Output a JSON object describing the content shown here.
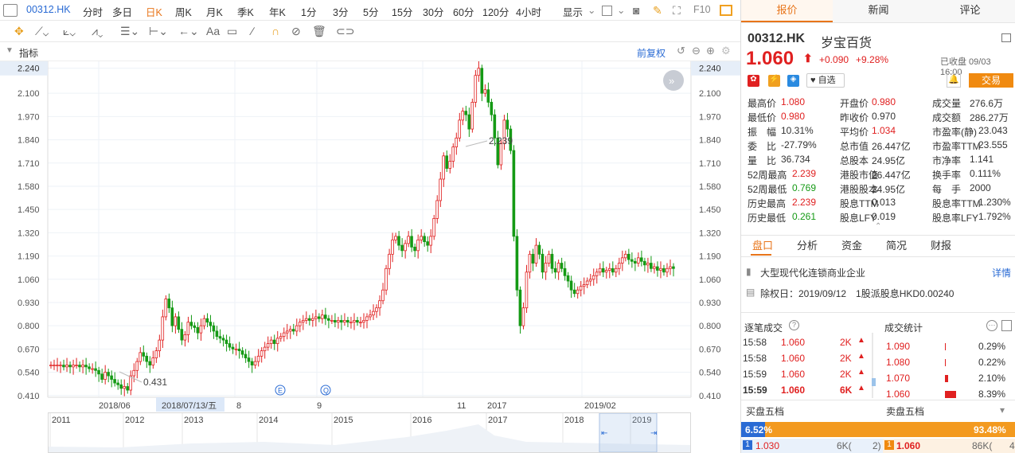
{
  "toolbar": {
    "code": "00312.HK",
    "periods": [
      "分时",
      "多日",
      "日K",
      "周K",
      "月K",
      "季K",
      "年K",
      "1分",
      "3分",
      "5分",
      "15分",
      "30分",
      "60分",
      "120分",
      "4小时"
    ],
    "active_period": "日K",
    "display": "显示",
    "f10": "F10"
  },
  "indicator": {
    "label": "指标",
    "adjust": "前复权"
  },
  "chart_data": {
    "type": "candlestick",
    "y_ticks": [
      "2.240",
      "2.100",
      "1.970",
      "1.840",
      "1.710",
      "1.580",
      "1.450",
      "1.320",
      "1.190",
      "1.060",
      "0.930",
      "0.800",
      "0.670",
      "0.540",
      "0.410"
    ],
    "ylim": [
      0.4,
      2.27
    ],
    "x_labels": [
      "2018/06",
      "2018/07/13/五",
      "8",
      "9",
      "11",
      "2017",
      "2019/02"
    ],
    "annot_high": "2.239",
    "annot_low": "0.431",
    "current_price_tag": "2.240",
    "markers": [
      "E",
      "Q"
    ],
    "closes": [
      0.58,
      0.58,
      0.58,
      0.58,
      0.57,
      0.58,
      0.57,
      0.58,
      0.58,
      0.57,
      0.58,
      0.57,
      0.56,
      0.56,
      0.55,
      0.53,
      0.5,
      0.54,
      0.52,
      0.5,
      0.48,
      0.47,
      0.45,
      0.46,
      0.44,
      0.52,
      0.55,
      0.6,
      0.65,
      0.63,
      0.6,
      0.58,
      0.62,
      0.66,
      0.72,
      0.85,
      0.95,
      0.9,
      0.8,
      0.85,
      0.78,
      0.72,
      0.75,
      0.82,
      0.8,
      0.79,
      0.76,
      0.8,
      0.84,
      0.82,
      0.8,
      0.77,
      0.74,
      0.73,
      0.72,
      0.7,
      0.68,
      0.67,
      0.67,
      0.66,
      0.64,
      0.62,
      0.6,
      0.58,
      0.6,
      0.63,
      0.66,
      0.68,
      0.7,
      0.72,
      0.7,
      0.73,
      0.74,
      0.76,
      0.77,
      0.78,
      0.77,
      0.8,
      0.82,
      0.83,
      0.84,
      0.83,
      0.84,
      0.85,
      0.84,
      0.86,
      0.84,
      0.83,
      0.83,
      0.82,
      0.83,
      0.82,
      0.83,
      0.82,
      0.82,
      0.83,
      0.82,
      0.82,
      0.83,
      0.85,
      0.86,
      0.88,
      0.9,
      0.94,
      1.0,
      1.12,
      1.2,
      1.28,
      1.3,
      1.25,
      1.22,
      1.26,
      1.3,
      1.24,
      1.22,
      1.28,
      1.3,
      1.27,
      1.25,
      1.3,
      1.4,
      1.5,
      1.62,
      1.75,
      1.68,
      1.72,
      1.8,
      1.85,
      1.95,
      2.0,
      1.98,
      1.9,
      2.05,
      2.2,
      2.24,
      2.1,
      2.12,
      2.05,
      1.98,
      1.85,
      1.7,
      1.82,
      1.95,
      1.9,
      1.78,
      1.3,
      1.0,
      0.8,
      0.9,
      1.1,
      1.2,
      1.15,
      1.25,
      1.2,
      1.1,
      1.15,
      1.2,
      1.12,
      1.1,
      1.15,
      1.12,
      1.08,
      1.05,
      1.0,
      0.98,
      1.0,
      1.02,
      1.03,
      1.05,
      1.06,
      1.08,
      1.1,
      1.12,
      1.1,
      1.11,
      1.12,
      1.1,
      1.12,
      1.15,
      1.18,
      1.2,
      1.17,
      1.16,
      1.15,
      1.18,
      1.16,
      1.14,
      1.15,
      1.12,
      1.13,
      1.11,
      1.12,
      1.1,
      1.12,
      1.13,
      1.12
    ]
  },
  "navigator": {
    "years": [
      "2011",
      "2012",
      "2013",
      "2014",
      "2015",
      "2016",
      "2017",
      "2018",
      "2019"
    ]
  },
  "panel": {
    "tabs": [
      "报价",
      "新闻",
      "评论"
    ],
    "code": "00312.HK",
    "name": "岁宝百货",
    "price": "1.060",
    "change": "+0.090",
    "pct": "+9.28%",
    "status": "已收盘 09/03 16:00",
    "watch": "自选",
    "trade": "交易",
    "stats": [
      [
        [
          "最高价",
          "1.080",
          "red"
        ],
        [
          "开盘价",
          "0.980",
          "red"
        ],
        [
          "成交量",
          "276.6万",
          ""
        ]
      ],
      [
        [
          "最低价",
          "0.980",
          "red"
        ],
        [
          "昨收价",
          "0.970",
          ""
        ],
        [
          "成交额",
          "286.27万",
          ""
        ]
      ],
      [
        [
          "振　幅",
          "10.31%",
          ""
        ],
        [
          "平均价",
          "1.034",
          "red"
        ],
        [
          "市盈率(静)",
          "23.043",
          ""
        ]
      ],
      [
        [
          "委　比",
          "-27.79%",
          ""
        ],
        [
          "总市值",
          "26.447亿",
          ""
        ],
        [
          "市盈率TTM",
          "23.555",
          ""
        ]
      ],
      [
        [
          "量　比",
          "36.734",
          ""
        ],
        [
          "总股本",
          "24.95亿",
          ""
        ],
        [
          "市净率",
          "1.141",
          ""
        ]
      ],
      [
        [
          "52周最高",
          "2.239",
          "red"
        ],
        [
          "港股市值",
          "26.447亿",
          ""
        ],
        [
          "换手率",
          "0.111%",
          ""
        ]
      ],
      [
        [
          "52周最低",
          "0.769",
          "green"
        ],
        [
          "港股股本",
          "24.95亿",
          ""
        ],
        [
          "每　手",
          "2000",
          ""
        ]
      ],
      [
        [
          "历史最高",
          "2.239",
          "red"
        ],
        [
          "股息TTM",
          "0.013",
          ""
        ],
        [
          "股息率TTM",
          "1.230%",
          ""
        ]
      ],
      [
        [
          "历史最低",
          "0.261",
          "green"
        ],
        [
          "股息LFY",
          "0.019",
          ""
        ],
        [
          "股息率LFY",
          "1.792%",
          ""
        ]
      ]
    ],
    "subtabs": [
      "盘口",
      "分析",
      "资金",
      "简况",
      "财报"
    ],
    "industry": "大型现代化连锁商业企业",
    "detail": "详情",
    "dividend": "除权日：2019/09/12　1股派股息HKD0.00240",
    "ticks_title": "逐笔成交",
    "stats_title": "成交统计",
    "ticks": [
      [
        "15:58",
        "1.060",
        "2K"
      ],
      [
        "15:58",
        "1.060",
        "2K"
      ],
      [
        "15:59",
        "1.060",
        "2K"
      ],
      [
        "15:59",
        "1.060",
        "6K"
      ]
    ],
    "volstats": [
      [
        "1.090",
        "0.29%"
      ],
      [
        "1.080",
        "0.22%"
      ],
      [
        "1.070",
        "2.10%"
      ],
      [
        "1.060",
        "8.39%"
      ]
    ],
    "buy_title": "买盘五档",
    "sell_title": "卖盘五档",
    "buy_pct": "6.52%",
    "sell_pct": "93.48%",
    "buy1": [
      "1",
      "1.030",
      "6K(",
      "2)"
    ],
    "sell1": [
      "1",
      "1.060",
      "86K(",
      "4"
    ]
  }
}
